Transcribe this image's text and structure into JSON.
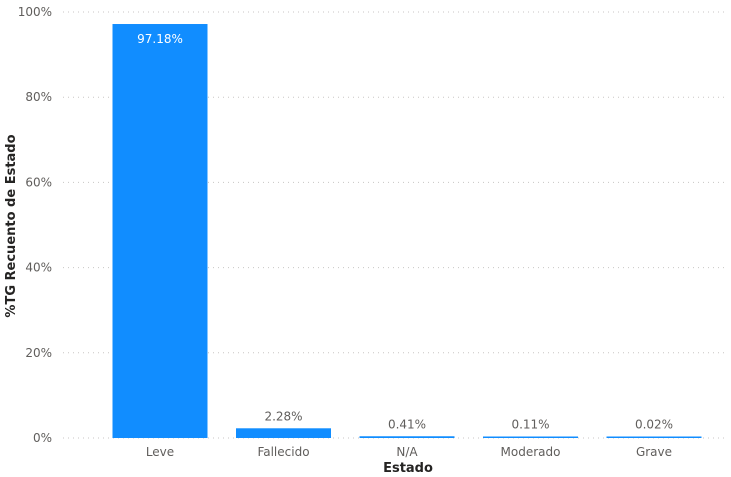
{
  "chart_data": {
    "type": "bar",
    "categories": [
      "Leve",
      "Fallecido",
      "N/A",
      "Moderado",
      "Grave"
    ],
    "values": [
      97.18,
      2.28,
      0.41,
      0.11,
      0.02
    ],
    "data_labels": [
      "97.18%",
      "2.28%",
      "0.41%",
      "0.11%",
      "0.02%"
    ],
    "xlabel": "Estado",
    "ylabel": "%TG Recuento de Estado",
    "ylim": [
      0,
      100
    ],
    "y_ticks": [
      "0%",
      "20%",
      "40%",
      "60%",
      "80%",
      "100%"
    ],
    "y_tick_values": [
      0,
      20,
      40,
      60,
      80,
      100
    ],
    "grid": true,
    "bar_color": "#118dff",
    "inside_label_color": "#ffffff",
    "outside_label_color": "#605e5c"
  }
}
